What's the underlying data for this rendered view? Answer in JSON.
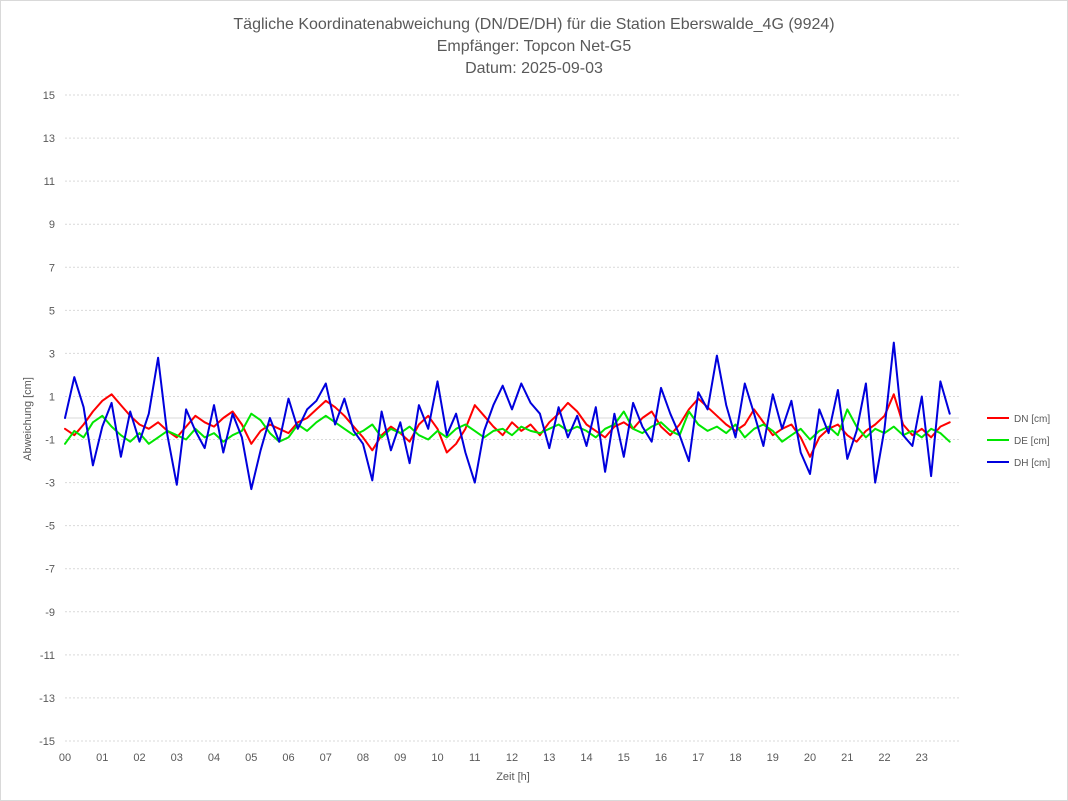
{
  "chart_data": {
    "type": "line",
    "title": [
      "Tägliche Koordinatenabweichung (DN/DE/DH) für die Station Eberswalde_4G (9924)",
      "Empfänger: Topcon Net-G5",
      "Datum: 2025-09-03"
    ],
    "xlabel": "Zeit [h]",
    "ylabel": "Abweichung [cm]",
    "ylim": [
      -15,
      15
    ],
    "yticks": [
      15,
      13,
      11,
      9,
      7,
      5,
      3,
      1,
      -1,
      -3,
      -5,
      -7,
      -9,
      -11,
      -13,
      -15
    ],
    "xlim": [
      0,
      24
    ],
    "xticks": [
      "00",
      "01",
      "02",
      "03",
      "04",
      "05",
      "06",
      "07",
      "08",
      "09",
      "10",
      "11",
      "12",
      "13",
      "14",
      "15",
      "16",
      "17",
      "18",
      "19",
      "20",
      "21",
      "22",
      "23"
    ],
    "grid": true,
    "legend_position": "right",
    "series": [
      {
        "name": "DN [cm]",
        "color": "#ff0000",
        "x": [
          0,
          0.25,
          0.5,
          0.75,
          1,
          1.25,
          1.5,
          1.75,
          2,
          2.25,
          2.5,
          2.75,
          3,
          3.25,
          3.5,
          3.75,
          4,
          4.25,
          4.5,
          4.75,
          5,
          5.25,
          5.5,
          5.75,
          6,
          6.25,
          6.5,
          6.75,
          7,
          7.25,
          7.5,
          7.75,
          8,
          8.25,
          8.5,
          8.75,
          9,
          9.25,
          9.5,
          9.75,
          10,
          10.25,
          10.5,
          10.75,
          11,
          11.25,
          11.5,
          11.75,
          12,
          12.25,
          12.5,
          12.75,
          13,
          13.25,
          13.5,
          13.75,
          14,
          14.25,
          14.5,
          14.75,
          15,
          15.25,
          15.5,
          15.75,
          16,
          16.25,
          16.5,
          16.75,
          17,
          17.25,
          17.5,
          17.75,
          18,
          18.25,
          18.5,
          18.75,
          19,
          19.25,
          19.5,
          19.75,
          20,
          20.25,
          20.5,
          20.75,
          21,
          21.25,
          21.5,
          21.75,
          22,
          22.25,
          22.5,
          22.75,
          23,
          23.25,
          23.5,
          23.75
        ],
        "values": [
          -0.5,
          -0.8,
          -0.3,
          0.3,
          0.8,
          1.1,
          0.6,
          0.1,
          -0.3,
          -0.5,
          -0.2,
          -0.6,
          -0.9,
          -0.4,
          0.1,
          -0.2,
          -0.4,
          0.0,
          0.3,
          -0.3,
          -1.2,
          -0.6,
          -0.3,
          -0.5,
          -0.7,
          -0.2,
          0.0,
          0.4,
          0.8,
          0.5,
          0.1,
          -0.4,
          -0.9,
          -1.5,
          -0.8,
          -0.4,
          -0.7,
          -1.1,
          -0.3,
          0.1,
          -0.5,
          -1.6,
          -1.2,
          -0.5,
          0.6,
          0.1,
          -0.4,
          -0.8,
          -0.2,
          -0.6,
          -0.3,
          -0.8,
          -0.2,
          0.2,
          0.7,
          0.3,
          -0.3,
          -0.6,
          -0.9,
          -0.4,
          -0.2,
          -0.5,
          0.0,
          0.3,
          -0.4,
          -0.8,
          -0.3,
          0.4,
          0.9,
          0.5,
          0.1,
          -0.3,
          -0.6,
          -0.3,
          0.4,
          -0.2,
          -0.8,
          -0.5,
          -0.3,
          -0.9,
          -1.8,
          -0.9,
          -0.5,
          -0.3,
          -0.8,
          -1.1,
          -0.6,
          -0.3,
          0.1,
          1.1,
          -0.3,
          -0.8,
          -0.5,
          -0.9,
          -0.4,
          -0.2
        ]
      },
      {
        "name": "DE [cm]",
        "color": "#00e600",
        "x": [
          0,
          0.25,
          0.5,
          0.75,
          1,
          1.25,
          1.5,
          1.75,
          2,
          2.25,
          2.5,
          2.75,
          3,
          3.25,
          3.5,
          3.75,
          4,
          4.25,
          4.5,
          4.75,
          5,
          5.25,
          5.5,
          5.75,
          6,
          6.25,
          6.5,
          6.75,
          7,
          7.25,
          7.5,
          7.75,
          8,
          8.25,
          8.5,
          8.75,
          9,
          9.25,
          9.5,
          9.75,
          10,
          10.25,
          10.5,
          10.75,
          11,
          11.25,
          11.5,
          11.75,
          12,
          12.25,
          12.5,
          12.75,
          13,
          13.25,
          13.5,
          13.75,
          14,
          14.25,
          14.5,
          14.75,
          15,
          15.25,
          15.5,
          15.75,
          16,
          16.25,
          16.5,
          16.75,
          17,
          17.25,
          17.5,
          17.75,
          18,
          18.25,
          18.5,
          18.75,
          19,
          19.25,
          19.5,
          19.75,
          20,
          20.25,
          20.5,
          20.75,
          21,
          21.25,
          21.5,
          21.75,
          22,
          22.25,
          22.5,
          22.75,
          23,
          23.25,
          23.5,
          23.75
        ],
        "values": [
          -1.2,
          -0.6,
          -0.9,
          -0.2,
          0.1,
          -0.4,
          -0.8,
          -1.1,
          -0.7,
          -1.2,
          -0.9,
          -0.6,
          -0.8,
          -1.0,
          -0.5,
          -0.9,
          -0.7,
          -1.1,
          -0.8,
          -0.6,
          0.2,
          -0.1,
          -0.7,
          -1.1,
          -0.9,
          -0.3,
          -0.6,
          -0.2,
          0.1,
          -0.2,
          -0.5,
          -0.8,
          -0.6,
          -0.3,
          -0.9,
          -0.5,
          -0.7,
          -0.4,
          -0.8,
          -1.0,
          -0.6,
          -0.9,
          -0.5,
          -0.3,
          -0.6,
          -0.9,
          -0.6,
          -0.5,
          -0.8,
          -0.4,
          -0.6,
          -0.7,
          -0.5,
          -0.3,
          -0.6,
          -0.4,
          -0.6,
          -0.9,
          -0.5,
          -0.3,
          0.3,
          -0.5,
          -0.7,
          -0.4,
          -0.2,
          -0.6,
          -0.8,
          0.3,
          -0.3,
          -0.6,
          -0.4,
          -0.7,
          -0.3,
          -0.9,
          -0.5,
          -0.3,
          -0.6,
          -1.1,
          -0.8,
          -0.5,
          -1.0,
          -0.6,
          -0.4,
          -0.8,
          0.4,
          -0.4,
          -0.9,
          -0.5,
          -0.7,
          -0.4,
          -0.8,
          -0.6,
          -0.9,
          -0.5,
          -0.7,
          -1.1
        ]
      },
      {
        "name": "DH [cm]",
        "color": "#0000dd",
        "x": [
          0,
          0.25,
          0.5,
          0.75,
          1,
          1.25,
          1.5,
          1.75,
          2,
          2.25,
          2.5,
          2.75,
          3,
          3.25,
          3.5,
          3.75,
          4,
          4.25,
          4.5,
          4.75,
          5,
          5.25,
          5.5,
          5.75,
          6,
          6.25,
          6.5,
          6.75,
          7,
          7.25,
          7.5,
          7.75,
          8,
          8.25,
          8.5,
          8.75,
          9,
          9.25,
          9.5,
          9.75,
          10,
          10.25,
          10.5,
          10.75,
          11,
          11.25,
          11.5,
          11.75,
          12,
          12.25,
          12.5,
          12.75,
          13,
          13.25,
          13.5,
          13.75,
          14,
          14.25,
          14.5,
          14.75,
          15,
          15.25,
          15.5,
          15.75,
          16,
          16.25,
          16.5,
          16.75,
          17,
          17.25,
          17.5,
          17.75,
          18,
          18.25,
          18.5,
          18.75,
          19,
          19.25,
          19.5,
          19.75,
          20,
          20.25,
          20.5,
          20.75,
          21,
          21.25,
          21.5,
          21.75,
          22,
          22.25,
          22.5,
          22.75,
          23,
          23.25,
          23.5,
          23.75
        ],
        "values": [
          0.0,
          1.9,
          0.5,
          -2.2,
          -0.4,
          0.7,
          -1.8,
          0.3,
          -1.1,
          0.2,
          2.8,
          -0.8,
          -3.1,
          0.4,
          -0.6,
          -1.4,
          0.6,
          -1.6,
          0.2,
          -0.9,
          -3.3,
          -1.5,
          0.0,
          -1.1,
          0.9,
          -0.5,
          0.4,
          0.8,
          1.6,
          -0.3,
          0.9,
          -0.6,
          -1.2,
          -2.9,
          0.3,
          -1.5,
          -0.2,
          -2.1,
          0.6,
          -0.5,
          1.7,
          -0.8,
          0.2,
          -1.6,
          -3.0,
          -0.6,
          0.6,
          1.5,
          0.4,
          1.6,
          0.7,
          0.2,
          -1.4,
          0.5,
          -0.9,
          0.1,
          -1.3,
          0.5,
          -2.5,
          0.2,
          -1.8,
          0.7,
          -0.4,
          -1.1,
          1.4,
          0.2,
          -0.8,
          -2.0,
          1.2,
          0.4,
          2.9,
          0.6,
          -0.9,
          1.6,
          0.2,
          -1.3,
          1.1,
          -0.5,
          0.8,
          -1.6,
          -2.6,
          0.4,
          -0.7,
          1.3,
          -1.9,
          -0.6,
          1.6,
          -3.0,
          -0.5,
          3.5,
          -0.8,
          -1.3,
          1.0,
          -2.7,
          1.7,
          0.2
        ]
      }
    ]
  }
}
